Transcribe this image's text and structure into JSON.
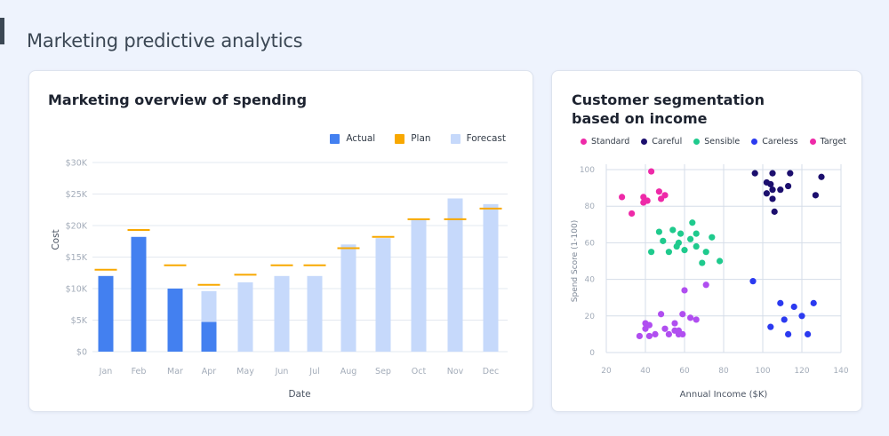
{
  "page": {
    "title": "Marketing predictive analytics"
  },
  "chart_data": [
    {
      "type": "bar",
      "title": "Marketing overview of spending",
      "xlabel": "Date",
      "ylabel": "Cost",
      "ylim": [
        0,
        30000
      ],
      "yticks": [
        0,
        5000,
        10000,
        15000,
        20000,
        25000,
        30000
      ],
      "ytick_labels": [
        "$0",
        "$5K",
        "$10K",
        "$15K",
        "$20K",
        "$25K",
        "$30K"
      ],
      "categories": [
        "Jan",
        "Feb",
        "Mar",
        "Apr",
        "May",
        "Jun",
        "Jul",
        "Aug",
        "Sep",
        "Oct",
        "Nov",
        "Dec"
      ],
      "legend_position": "top-right",
      "grid": true,
      "series": [
        {
          "name": "Actual",
          "color": "#4380f0",
          "values": [
            12000,
            18200,
            10000,
            4700,
            null,
            null,
            null,
            null,
            null,
            null,
            null,
            null
          ]
        },
        {
          "name": "Plan",
          "color": "#f8a800",
          "values": [
            13000,
            19300,
            13700,
            10600,
            12200,
            13700,
            13700,
            16400,
            18200,
            21000,
            21000,
            22700
          ]
        },
        {
          "name": "Forecast",
          "color": "#c6d9fb",
          "values": [
            null,
            null,
            null,
            9600,
            11000,
            12000,
            12000,
            17000,
            18000,
            21000,
            24300,
            23400
          ]
        }
      ]
    },
    {
      "type": "scatter",
      "title": "Customer segmentation based on income",
      "xlabel": "Annual Income ($K)",
      "ylabel": "Spend Score (1-100)",
      "xlim": [
        20,
        140
      ],
      "ylim": [
        0,
        100
      ],
      "xticks": [
        20,
        40,
        60,
        80,
        100,
        120,
        140
      ],
      "yticks": [
        0,
        20,
        40,
        60,
        80,
        100
      ],
      "legend_position": "top",
      "grid": true,
      "series": [
        {
          "name": "Standard",
          "color": "#ee2aa8",
          "legend_color": "#ee2aa8",
          "points": [
            [
              43,
              99
            ],
            [
              28,
              85
            ],
            [
              33,
              76
            ],
            [
              39,
              85
            ],
            [
              41,
              83
            ],
            [
              39,
              82
            ],
            [
              47,
              88
            ],
            [
              50,
              86
            ],
            [
              48,
              84
            ]
          ]
        },
        {
          "name": "Careful",
          "color": "#1c0f6e",
          "legend_color": "#1c0f6e",
          "points": [
            [
              96,
              98
            ],
            [
              105,
              98
            ],
            [
              114,
              98
            ],
            [
              130,
              96
            ],
            [
              102,
              93
            ],
            [
              104,
              92
            ],
            [
              105,
              89
            ],
            [
              109,
              89
            ],
            [
              113,
              91
            ],
            [
              102,
              87
            ],
            [
              105,
              84
            ],
            [
              127,
              86
            ],
            [
              106,
              77
            ]
          ]
        },
        {
          "name": "Sensible",
          "color": "#1fca8d",
          "legend_color": "#1fca8d",
          "points": [
            [
              64,
              71
            ],
            [
              47,
              66
            ],
            [
              54,
              67
            ],
            [
              58,
              65
            ],
            [
              66,
              65
            ],
            [
              49,
              61
            ],
            [
              63,
              62
            ],
            [
              57,
              60
            ],
            [
              56,
              58
            ],
            [
              66,
              58
            ],
            [
              60,
              56
            ],
            [
              43,
              55
            ],
            [
              52,
              55
            ],
            [
              71,
              55
            ],
            [
              74,
              63
            ],
            [
              69,
              49
            ],
            [
              78,
              50
            ]
          ]
        },
        {
          "name": "Careless",
          "color": "#2b3af0",
          "legend_color": "#2b3af0",
          "points": [
            [
              95,
              39
            ],
            [
              109,
              27
            ],
            [
              116,
              25
            ],
            [
              126,
              27
            ],
            [
              120,
              20
            ],
            [
              111,
              18
            ],
            [
              104,
              14
            ],
            [
              113,
              10
            ],
            [
              123,
              10
            ]
          ]
        },
        {
          "name": "Target",
          "color": "#b04ef0",
          "legend_color": "#ee2aa8",
          "points": [
            [
              60,
              34
            ],
            [
              71,
              37
            ],
            [
              48,
              21
            ],
            [
              59,
              21
            ],
            [
              63,
              19
            ],
            [
              66,
              18
            ],
            [
              55,
              16
            ],
            [
              40,
              16
            ],
            [
              42,
              15
            ],
            [
              40,
              13
            ],
            [
              50,
              13
            ],
            [
              55,
              12
            ],
            [
              57,
              12
            ],
            [
              37,
              9
            ],
            [
              42,
              9
            ],
            [
              45,
              10
            ],
            [
              52,
              10
            ],
            [
              57,
              10
            ],
            [
              59,
              10
            ]
          ]
        }
      ]
    }
  ]
}
